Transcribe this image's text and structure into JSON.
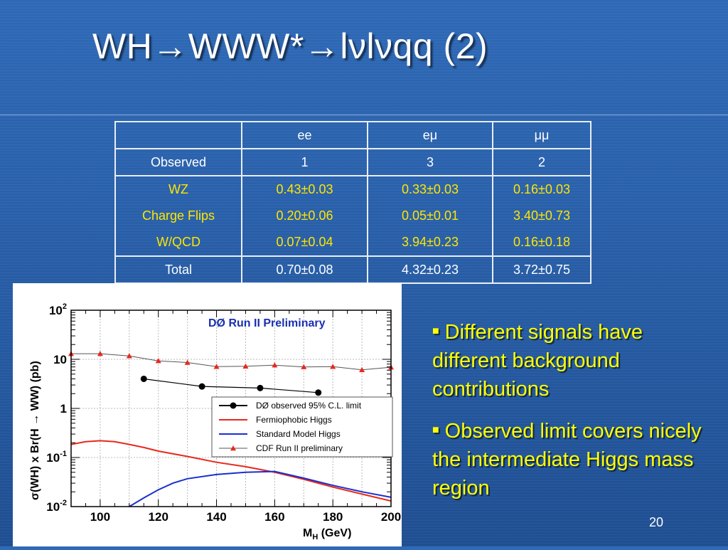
{
  "slide": {
    "title": "WH→WWW*→lνlνqq (2)",
    "page_number": "20"
  },
  "table": {
    "header": [
      "",
      "ee",
      "eμ",
      "μμ"
    ],
    "observed": {
      "label": "Observed",
      "values": [
        "1",
        "3",
        "2"
      ]
    },
    "backgrounds": [
      {
        "label": "WZ",
        "values": [
          "0.43±0.03",
          "0.33±0.03",
          "0.16±0.03"
        ]
      },
      {
        "label": "Charge Flips",
        "values": [
          "0.20±0.06",
          "0.05±0.01",
          "3.40±0.73"
        ]
      },
      {
        "label": "W/QCD",
        "values": [
          "0.07±0.04",
          "3.94±0.23",
          "0.16±0.18"
        ]
      }
    ],
    "total": {
      "label": "Total",
      "values": [
        "0.70±0.08",
        "4.32±0.23",
        "3.72±0.75"
      ]
    }
  },
  "bullets": [
    "Different signals have different background contributions",
    "Observed limit covers nicely the intermediate Higgs mass region"
  ],
  "colors": {
    "background": "#2a62ad",
    "highlight_text": "#ffe600",
    "fermiophobic": "#e8281c",
    "standard_model": "#1a2fd0",
    "cdf": "#e8281c",
    "plot_title": "#1a2fb0"
  },
  "chart_data": {
    "type": "line",
    "title": "DØ Run II Preliminary",
    "xlabel": "M_H (GeV)",
    "ylabel": "σ(WH) x Br(H → WW) (pb)",
    "xlim": [
      90,
      200
    ],
    "ylim": [
      0.01,
      100
    ],
    "yscale": "log",
    "x_ticks": [
      "100",
      "120",
      "140",
      "160",
      "180",
      "200"
    ],
    "y_ticks": [
      {
        "base": "10",
        "exp": "-2"
      },
      {
        "base": "10",
        "exp": "-1"
      },
      {
        "base": "1",
        "exp": ""
      },
      {
        "base": "10",
        "exp": ""
      },
      {
        "base": "10",
        "exp": "2"
      }
    ],
    "grid": true,
    "legend_position": "right",
    "series": [
      {
        "name": "DØ observed 95% C.L. limit",
        "style": "black-dots-line",
        "x": [
          115,
          135,
          155,
          175
        ],
        "y": [
          4.0,
          2.8,
          2.6,
          2.1
        ]
      },
      {
        "name": "Fermiophobic Higgs",
        "style": "red-line",
        "x": [
          90,
          95,
          100,
          105,
          110,
          115,
          120,
          130,
          140,
          150,
          160,
          170,
          180,
          190,
          200
        ],
        "y": [
          0.185,
          0.21,
          0.22,
          0.21,
          0.185,
          0.16,
          0.135,
          0.105,
          0.08,
          0.065,
          0.05,
          0.036,
          0.025,
          0.018,
          0.013
        ]
      },
      {
        "name": "Standard Model Higgs",
        "style": "blue-line",
        "x": [
          110,
          115,
          120,
          125,
          130,
          140,
          150,
          160,
          170,
          180,
          190,
          200
        ],
        "y": [
          0.01,
          0.015,
          0.022,
          0.03,
          0.037,
          0.045,
          0.05,
          0.052,
          0.038,
          0.027,
          0.02,
          0.0155
        ]
      },
      {
        "name": "CDF Run II preliminary",
        "style": "red-triangles-line",
        "x": [
          90,
          100,
          110,
          120,
          130,
          140,
          150,
          160,
          170,
          180,
          190,
          200
        ],
        "y": [
          13,
          13,
          11.7,
          9.3,
          8.6,
          7.1,
          7.2,
          7.6,
          7.0,
          7.1,
          6.1,
          6.9
        ]
      }
    ]
  }
}
